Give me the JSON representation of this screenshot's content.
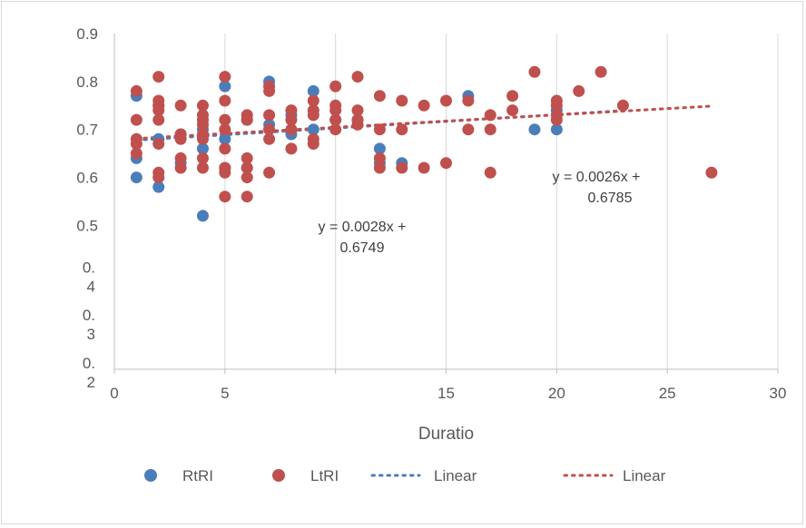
{
  "chart_data": {
    "type": "scatter",
    "xlabel": "Duratio",
    "ylabel": "",
    "xlim": [
      0,
      30
    ],
    "ylim": [
      0.2,
      0.9
    ],
    "x_ticks": [
      "0",
      "5",
      "15",
      "20",
      "25",
      "30"
    ],
    "y_ticks": [
      {
        "value": 0.9,
        "lines": [
          "0.9"
        ]
      },
      {
        "value": 0.8,
        "lines": [
          "0.8"
        ]
      },
      {
        "value": 0.7,
        "lines": [
          "0.7"
        ]
      },
      {
        "value": 0.6,
        "lines": [
          "0.6"
        ]
      },
      {
        "value": 0.5,
        "lines": [
          "0.5"
        ]
      },
      {
        "value": 0.4,
        "lines": [
          "0.",
          "4"
        ]
      },
      {
        "value": 0.3,
        "lines": [
          "0.",
          "3"
        ]
      },
      {
        "value": 0.2,
        "lines": [
          "0.",
          "2"
        ]
      }
    ],
    "grid": "vertical",
    "legend_position": "bottom",
    "series": [
      {
        "name": "RtRI",
        "color": "#4a7ebb",
        "points": [
          [
            1,
            0.77
          ],
          [
            1,
            0.64
          ],
          [
            1,
            0.6
          ],
          [
            2,
            0.68
          ],
          [
            2,
            0.58
          ],
          [
            2,
            0.75
          ],
          [
            3,
            0.69
          ],
          [
            3,
            0.63
          ],
          [
            4,
            0.52
          ],
          [
            4,
            0.7
          ],
          [
            4,
            0.66
          ],
          [
            5,
            0.79
          ],
          [
            5,
            0.62
          ],
          [
            5,
            0.68
          ],
          [
            6,
            0.62
          ],
          [
            6,
            0.72
          ],
          [
            7,
            0.8
          ],
          [
            7,
            0.71
          ],
          [
            8,
            0.73
          ],
          [
            8,
            0.69
          ],
          [
            9,
            0.78
          ],
          [
            9,
            0.7
          ],
          [
            10,
            0.72
          ],
          [
            11,
            0.72
          ],
          [
            12,
            0.66
          ],
          [
            12,
            0.63
          ],
          [
            13,
            0.63
          ],
          [
            16,
            0.77
          ],
          [
            19,
            0.7
          ],
          [
            20,
            0.7
          ],
          [
            20,
            0.74
          ]
        ]
      },
      {
        "name": "LtRI",
        "color": "#c0504d",
        "points": [
          [
            1,
            0.78
          ],
          [
            1,
            0.72
          ],
          [
            1,
            0.68
          ],
          [
            1,
            0.67
          ],
          [
            1,
            0.65
          ],
          [
            2,
            0.81
          ],
          [
            2,
            0.76
          ],
          [
            2,
            0.75
          ],
          [
            2,
            0.74
          ],
          [
            2,
            0.72
          ],
          [
            2,
            0.67
          ],
          [
            2,
            0.61
          ],
          [
            2,
            0.6
          ],
          [
            3,
            0.75
          ],
          [
            3,
            0.69
          ],
          [
            3,
            0.68
          ],
          [
            3,
            0.64
          ],
          [
            3,
            0.62
          ],
          [
            4,
            0.75
          ],
          [
            4,
            0.73
          ],
          [
            4,
            0.72
          ],
          [
            4,
            0.71
          ],
          [
            4,
            0.69
          ],
          [
            4,
            0.68
          ],
          [
            4,
            0.64
          ],
          [
            4,
            0.62
          ],
          [
            5,
            0.81
          ],
          [
            5,
            0.76
          ],
          [
            5,
            0.72
          ],
          [
            5,
            0.7
          ],
          [
            5,
            0.66
          ],
          [
            5,
            0.62
          ],
          [
            5,
            0.61
          ],
          [
            5,
            0.56
          ],
          [
            6,
            0.73
          ],
          [
            6,
            0.72
          ],
          [
            6,
            0.64
          ],
          [
            6,
            0.62
          ],
          [
            6,
            0.6
          ],
          [
            6,
            0.56
          ],
          [
            7,
            0.79
          ],
          [
            7,
            0.78
          ],
          [
            7,
            0.73
          ],
          [
            7,
            0.7
          ],
          [
            7,
            0.68
          ],
          [
            7,
            0.61
          ],
          [
            8,
            0.74
          ],
          [
            8,
            0.72
          ],
          [
            8,
            0.7
          ],
          [
            8,
            0.66
          ],
          [
            9,
            0.76
          ],
          [
            9,
            0.74
          ],
          [
            9,
            0.73
          ],
          [
            9,
            0.68
          ],
          [
            9,
            0.67
          ],
          [
            10,
            0.79
          ],
          [
            10,
            0.75
          ],
          [
            10,
            0.74
          ],
          [
            10,
            0.72
          ],
          [
            10,
            0.7
          ],
          [
            11,
            0.81
          ],
          [
            11,
            0.74
          ],
          [
            11,
            0.72
          ],
          [
            11,
            0.71
          ],
          [
            12,
            0.77
          ],
          [
            12,
            0.7
          ],
          [
            12,
            0.64
          ],
          [
            12,
            0.62
          ],
          [
            13,
            0.76
          ],
          [
            13,
            0.7
          ],
          [
            13,
            0.62
          ],
          [
            14,
            0.75
          ],
          [
            14,
            0.62
          ],
          [
            15,
            0.76
          ],
          [
            15,
            0.63
          ],
          [
            16,
            0.76
          ],
          [
            16,
            0.7
          ],
          [
            17,
            0.73
          ],
          [
            17,
            0.7
          ],
          [
            17,
            0.61
          ],
          [
            18,
            0.77
          ],
          [
            18,
            0.74
          ],
          [
            19,
            0.82
          ],
          [
            20,
            0.76
          ],
          [
            20,
            0.75
          ],
          [
            20,
            0.73
          ],
          [
            20,
            0.72
          ],
          [
            21,
            0.78
          ],
          [
            22,
            0.82
          ],
          [
            23,
            0.75
          ],
          [
            27,
            0.61
          ]
        ]
      }
    ],
    "trendlines": [
      {
        "name": "Linear",
        "color": "#4a7ebb",
        "slope": 0.0028,
        "intercept": 0.6749,
        "x_range": [
          1,
          23
        ],
        "equation": [
          "y = 0.0028x +",
          "0.6749"
        ]
      },
      {
        "name": "Linear",
        "color": "#c0504d",
        "slope": 0.0026,
        "intercept": 0.6785,
        "x_range": [
          1,
          27
        ],
        "equation": [
          "y = 0.0026x +",
          "0.6785"
        ]
      }
    ],
    "legend": [
      {
        "label": "RtRI",
        "kind": "marker",
        "color": "#4a7ebb"
      },
      {
        "label": "LtRI",
        "kind": "marker",
        "color": "#c0504d"
      },
      {
        "label": "Linear",
        "kind": "dotted-line",
        "color": "#4a7ebb"
      },
      {
        "label": "Linear",
        "kind": "dotted-line",
        "color": "#c0504d"
      }
    ]
  }
}
